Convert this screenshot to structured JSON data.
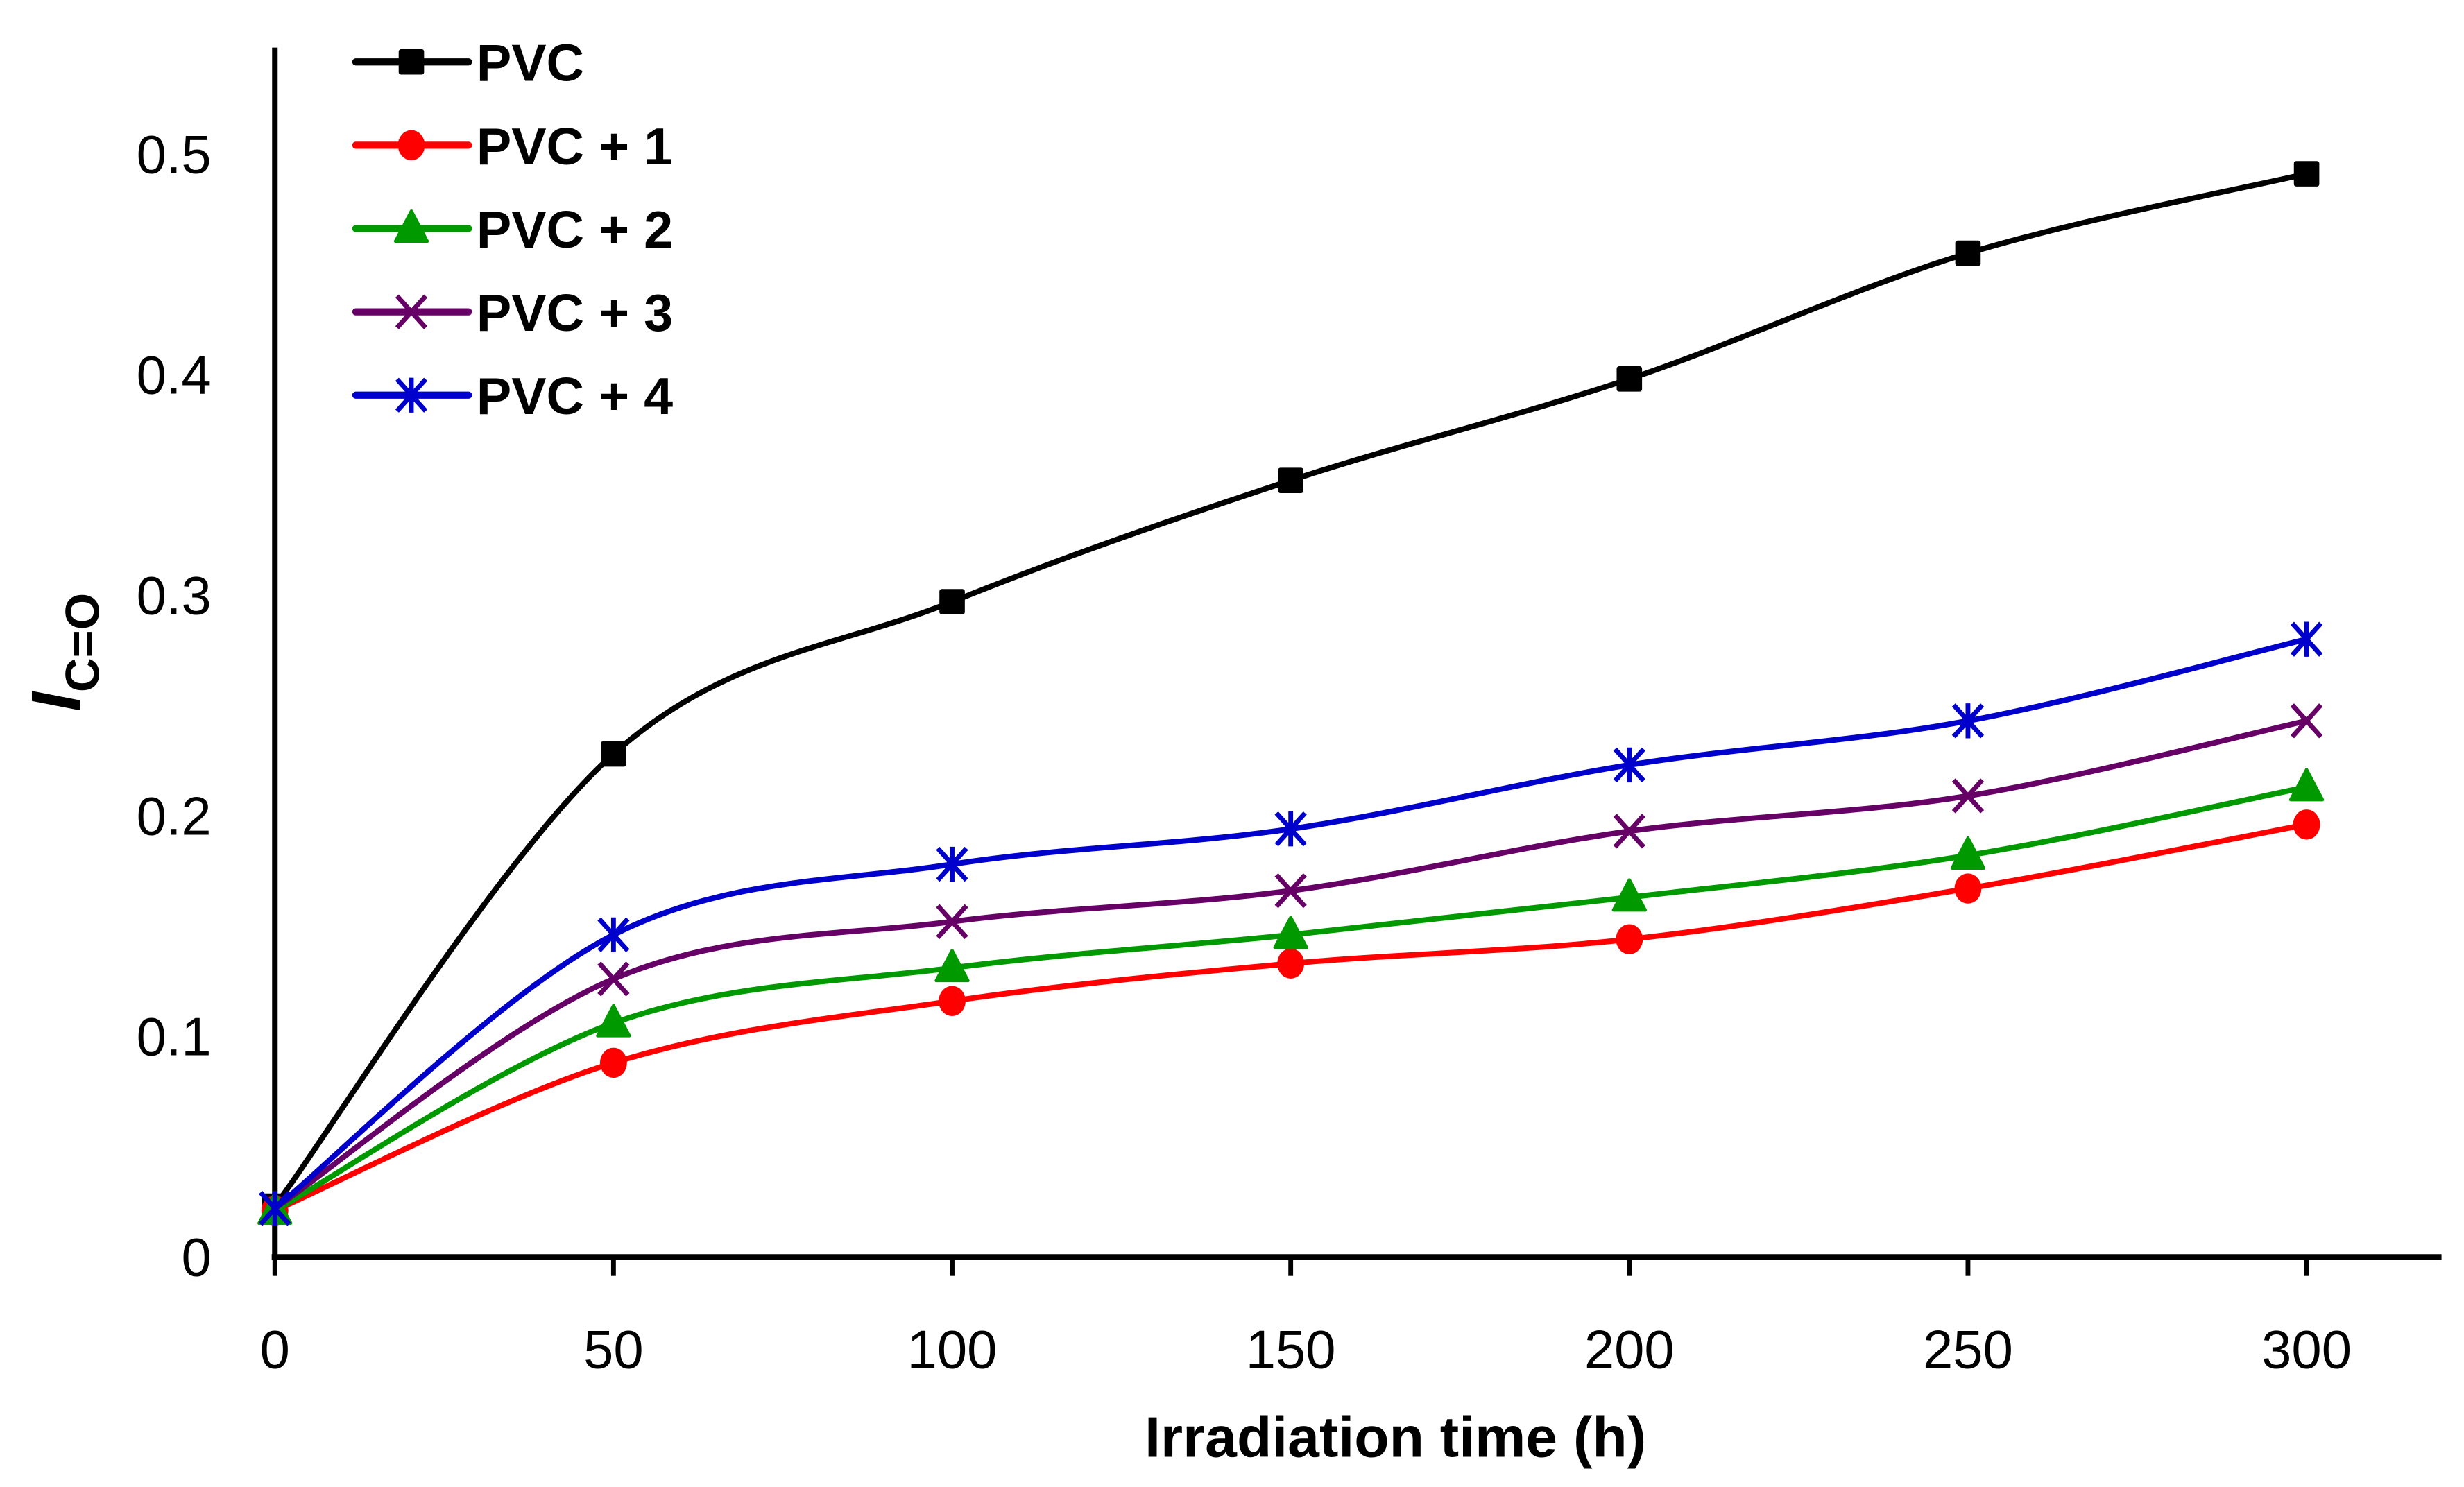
{
  "chart_data": {
    "type": "line",
    "title": "",
    "xlabel": "Irradiation time (h)",
    "ylabel_main": "I",
    "ylabel_sub": "C=O",
    "xlim": [
      0,
      320
    ],
    "ylim": [
      0,
      0.55
    ],
    "x_ticks": [
      0,
      50,
      100,
      150,
      200,
      250,
      300
    ],
    "x_tick_labels": [
      "0",
      "50",
      "100",
      "150",
      "200",
      "250",
      "300"
    ],
    "y_ticks": [
      0,
      0.1,
      0.2,
      0.3,
      0.4,
      0.5
    ],
    "y_tick_labels": [
      "0",
      "0.1",
      "0.2",
      "0.3",
      "0.4",
      "0.5"
    ],
    "grid": false,
    "legend_position": "top-left",
    "x": [
      0,
      50,
      100,
      150,
      200,
      250,
      300
    ],
    "series": [
      {
        "name": "PVC",
        "color": "#000000",
        "marker": "square",
        "values": [
          0.023,
          0.228,
          0.297,
          0.352,
          0.398,
          0.455,
          0.491
        ]
      },
      {
        "name": "PVC + 1",
        "color": "#ff0000",
        "marker": "circle",
        "values": [
          0.021,
          0.088,
          0.116,
          0.133,
          0.144,
          0.167,
          0.196
        ]
      },
      {
        "name": "PVC + 2",
        "color": "#009900",
        "marker": "triangle",
        "values": [
          0.021,
          0.106,
          0.131,
          0.146,
          0.163,
          0.182,
          0.213
        ]
      },
      {
        "name": "PVC + 3",
        "color": "#660066",
        "marker": "x",
        "values": [
          0.022,
          0.126,
          0.152,
          0.166,
          0.193,
          0.209,
          0.243
        ]
      },
      {
        "name": "PVC + 4",
        "color": "#0000cc",
        "marker": "asterisk",
        "values": [
          0.022,
          0.146,
          0.178,
          0.194,
          0.223,
          0.243,
          0.28
        ]
      }
    ]
  }
}
